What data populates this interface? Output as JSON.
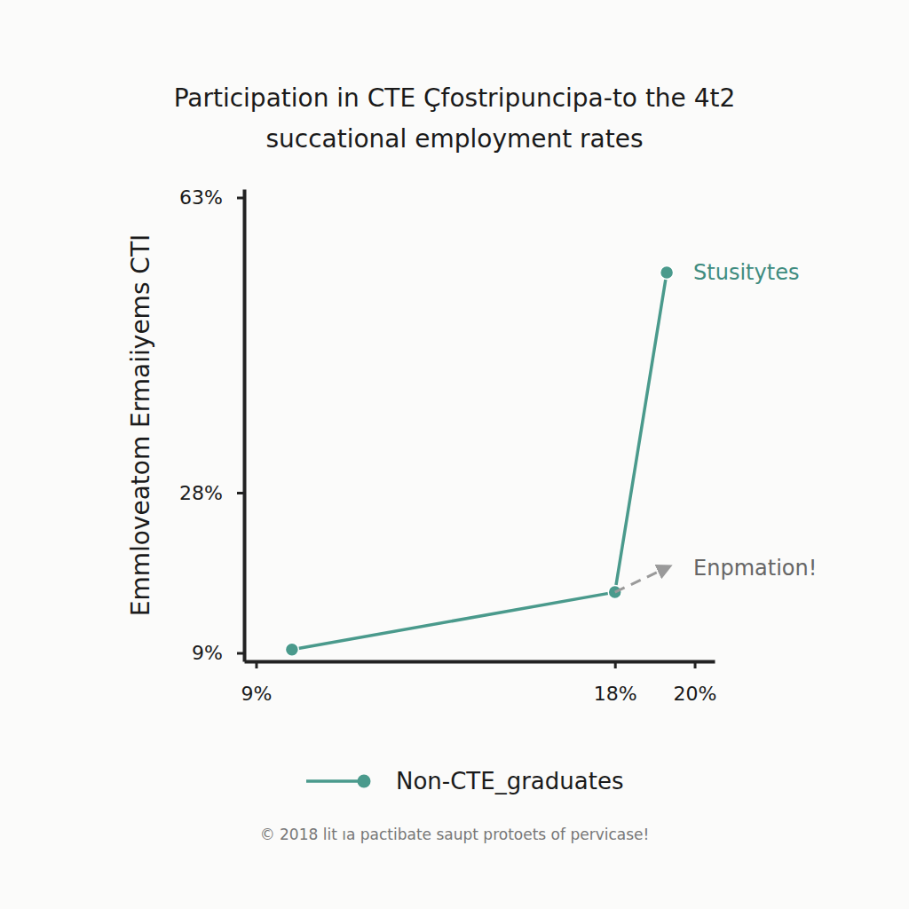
{
  "chart_data": {
    "type": "line",
    "title": "Participation in CTE Çfostripuncipa-to the 4t2\nsuccational employment rates",
    "y_label": "Emmloveatom Ermaiiyems CTI",
    "xlim": [
      8.7,
      20.5
    ],
    "xticks": [
      {
        "value": 9,
        "label": "9%"
      },
      {
        "value": 18,
        "label": "18%"
      },
      {
        "value": 20,
        "label": "20%"
      }
    ],
    "ylim": [
      8,
      64
    ],
    "yticks": [
      {
        "value": 9,
        "label": "9%"
      },
      {
        "value": 28,
        "label": "28%"
      },
      {
        "value": 63,
        "label": "63%"
      }
    ],
    "series": [
      {
        "name": "Non-CTE_graduates",
        "color": "#4a9a8c",
        "marker": "circle",
        "line_style": "solid",
        "x": [
          9.9,
          18,
          19.3
        ],
        "values": [
          9.4,
          16.2,
          54.1
        ]
      },
      {
        "color": "#9a9a9a",
        "marker": "arrow",
        "line_style": "dashed",
        "x": [
          18,
          19.3
        ],
        "values": [
          16.2,
          19.1
        ]
      }
    ],
    "annotations": [
      {
        "text": "Stusitytes",
        "x": 19.3,
        "y": 54.1,
        "color": "#3f8c80"
      },
      {
        "text": "Enpmation!",
        "x": 19.3,
        "y": 19.1,
        "color": "#666666"
      }
    ],
    "legend": "bottom",
    "grid": false,
    "footer": "© 2018 lit ıa pactibate saupt protoets of pervicase!"
  }
}
